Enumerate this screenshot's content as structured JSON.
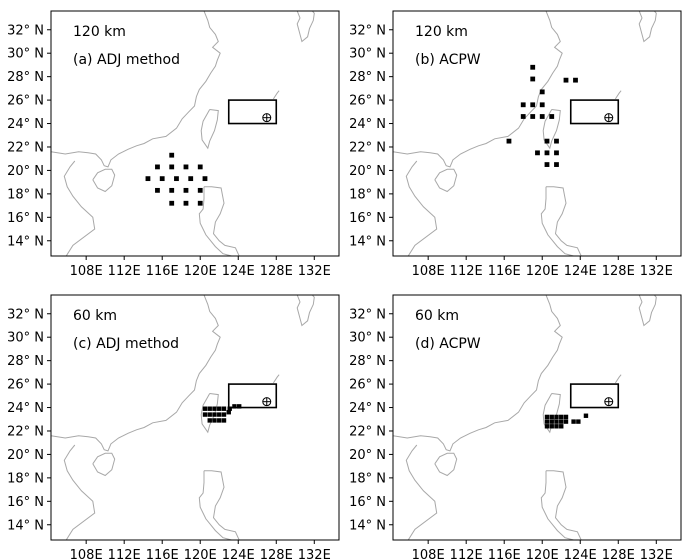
{
  "lat_labels": [
    "32° N",
    "30° N",
    "28° N",
    "26° N",
    "24° N",
    "22° N",
    "20° N",
    "18° N",
    "16° N",
    "14° N"
  ],
  "lon_labels": [
    "108E",
    "112E",
    "116E",
    "120E",
    "124E",
    "128E",
    "132E"
  ],
  "lat_values": [
    32,
    30,
    28,
    26,
    24,
    22,
    20,
    18,
    16,
    14
  ],
  "lon_values": [
    108,
    112,
    116,
    120,
    124,
    128,
    132
  ],
  "colors": {
    "frame": "#000000",
    "coast": "#a8a8a8",
    "marker": "#000000"
  },
  "panels": [
    {
      "id": "a",
      "resolution": "120 km",
      "label": "(a)  ADJ method",
      "box": {
        "lon": [
          123,
          128
        ],
        "lat": [
          24,
          26
        ]
      },
      "target": {
        "lon": 127,
        "lat": 24.5
      },
      "points": [
        {
          "lon": 117,
          "lat": 21.3
        },
        {
          "lon": 115.5,
          "lat": 20.3
        },
        {
          "lon": 117,
          "lat": 20.3
        },
        {
          "lon": 118.5,
          "lat": 20.3
        },
        {
          "lon": 120,
          "lat": 20.3
        },
        {
          "lon": 114.5,
          "lat": 19.3
        },
        {
          "lon": 116,
          "lat": 19.3
        },
        {
          "lon": 117.5,
          "lat": 19.3
        },
        {
          "lon": 119,
          "lat": 19.3
        },
        {
          "lon": 120.5,
          "lat": 19.3
        },
        {
          "lon": 115.5,
          "lat": 18.3
        },
        {
          "lon": 117,
          "lat": 18.3
        },
        {
          "lon": 118.5,
          "lat": 18.3
        },
        {
          "lon": 120,
          "lat": 18.3
        },
        {
          "lon": 117,
          "lat": 17.2
        },
        {
          "lon": 118.5,
          "lat": 17.2
        },
        {
          "lon": 120,
          "lat": 17.2
        }
      ]
    },
    {
      "id": "b",
      "resolution": "120 km",
      "label": "(b)  ACPW",
      "box": {
        "lon": [
          123,
          128
        ],
        "lat": [
          24,
          26
        ]
      },
      "target": {
        "lon": 127,
        "lat": 24.5
      },
      "points": [
        {
          "lon": 119,
          "lat": 28.8
        },
        {
          "lon": 119,
          "lat": 27.8
        },
        {
          "lon": 122.5,
          "lat": 27.7
        },
        {
          "lon": 123.5,
          "lat": 27.7
        },
        {
          "lon": 120,
          "lat": 26.7
        },
        {
          "lon": 118,
          "lat": 25.6
        },
        {
          "lon": 119,
          "lat": 25.6
        },
        {
          "lon": 120,
          "lat": 25.6
        },
        {
          "lon": 118,
          "lat": 24.6
        },
        {
          "lon": 119,
          "lat": 24.6
        },
        {
          "lon": 120,
          "lat": 24.6
        },
        {
          "lon": 121,
          "lat": 24.6
        },
        {
          "lon": 116.5,
          "lat": 22.5
        },
        {
          "lon": 120.5,
          "lat": 22.5
        },
        {
          "lon": 121.5,
          "lat": 22.5
        },
        {
          "lon": 119.5,
          "lat": 21.5
        },
        {
          "lon": 120.5,
          "lat": 21.5
        },
        {
          "lon": 121.5,
          "lat": 21.5
        },
        {
          "lon": 120.5,
          "lat": 20.5
        },
        {
          "lon": 121.5,
          "lat": 20.5
        }
      ]
    },
    {
      "id": "c",
      "resolution": "60 km",
      "label": "(c)  ADJ method",
      "box": {
        "lon": [
          123,
          128
        ],
        "lat": [
          24,
          26
        ]
      },
      "target": {
        "lon": 127,
        "lat": 24.5
      },
      "points": [
        {
          "lon": 120.5,
          "lat": 23.9
        },
        {
          "lon": 121,
          "lat": 23.9
        },
        {
          "lon": 121.5,
          "lat": 23.9
        },
        {
          "lon": 122,
          "lat": 23.9
        },
        {
          "lon": 122.5,
          "lat": 23.9
        },
        {
          "lon": 123.1,
          "lat": 23.9
        },
        {
          "lon": 123.6,
          "lat": 24.1
        },
        {
          "lon": 124.1,
          "lat": 24.1
        },
        {
          "lon": 120.5,
          "lat": 23.4
        },
        {
          "lon": 121,
          "lat": 23.4
        },
        {
          "lon": 121.5,
          "lat": 23.4
        },
        {
          "lon": 122,
          "lat": 23.4
        },
        {
          "lon": 122.5,
          "lat": 23.4
        },
        {
          "lon": 123,
          "lat": 23.6
        },
        {
          "lon": 121,
          "lat": 22.9
        },
        {
          "lon": 121.5,
          "lat": 22.9
        },
        {
          "lon": 122,
          "lat": 22.9
        },
        {
          "lon": 122.5,
          "lat": 22.9
        }
      ]
    },
    {
      "id": "d",
      "resolution": "60 km",
      "label": "(d)  ACPW",
      "box": {
        "lon": [
          123,
          128
        ],
        "lat": [
          24,
          26
        ]
      },
      "target": {
        "lon": 127,
        "lat": 24.5
      },
      "points": [
        {
          "lon": 120.5,
          "lat": 23.2
        },
        {
          "lon": 121,
          "lat": 23.2
        },
        {
          "lon": 121.5,
          "lat": 23.2
        },
        {
          "lon": 122,
          "lat": 23.2
        },
        {
          "lon": 122.5,
          "lat": 23.2
        },
        {
          "lon": 120.5,
          "lat": 22.8
        },
        {
          "lon": 121,
          "lat": 22.8
        },
        {
          "lon": 121.5,
          "lat": 22.8
        },
        {
          "lon": 122,
          "lat": 22.8
        },
        {
          "lon": 122.5,
          "lat": 22.8
        },
        {
          "lon": 123.3,
          "lat": 22.8
        },
        {
          "lon": 123.8,
          "lat": 22.8
        },
        {
          "lon": 120.5,
          "lat": 22.4
        },
        {
          "lon": 121,
          "lat": 22.4
        },
        {
          "lon": 121.5,
          "lat": 22.4
        },
        {
          "lon": 122,
          "lat": 22.4
        },
        {
          "lon": 124.6,
          "lat": 23.3
        }
      ]
    }
  ]
}
